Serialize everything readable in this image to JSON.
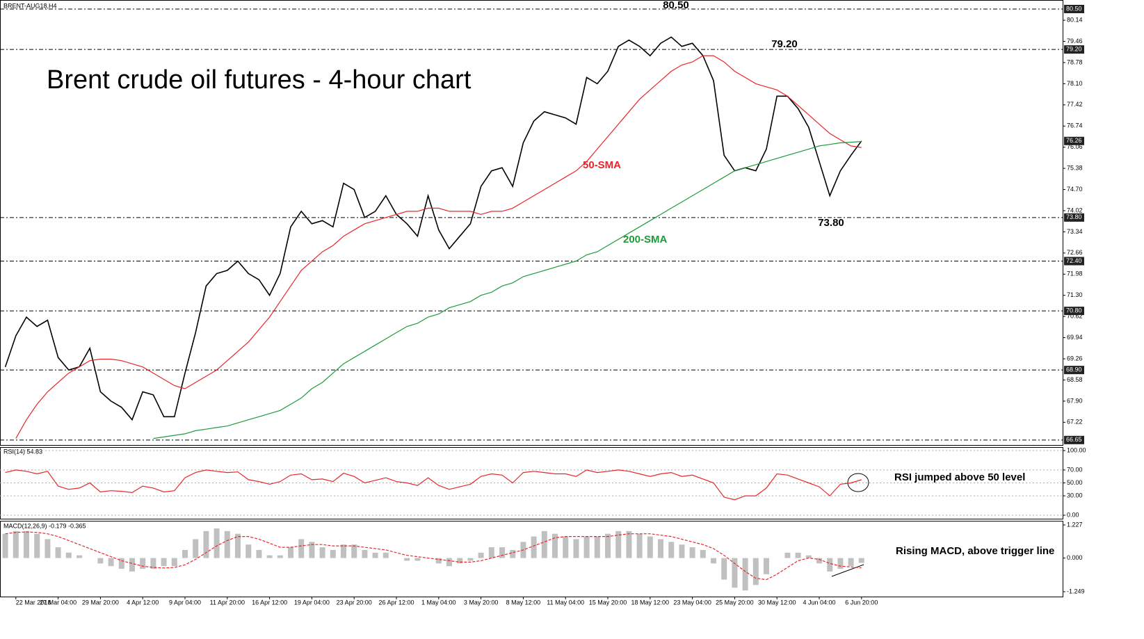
{
  "chart_data": [
    {
      "type": "line",
      "title": "Brent crude oil futures - 4-hour chart",
      "subtitle": "BRENT-AUG18,H4",
      "x": [
        -4,
        0,
        4,
        8,
        12,
        16,
        20,
        24,
        28,
        32,
        36,
        40,
        44,
        48,
        52,
        56,
        60,
        64,
        68,
        72,
        76,
        80,
        84,
        88,
        92,
        96,
        100,
        104,
        108,
        112,
        116,
        120,
        124,
        128,
        132,
        136,
        140,
        144,
        148,
        152,
        156,
        160,
        164,
        168,
        172,
        176,
        180,
        184,
        188,
        192,
        196,
        200,
        204,
        208,
        212,
        216,
        220,
        224,
        228,
        232,
        236,
        240,
        244,
        248,
        252,
        256,
        260,
        264,
        268,
        272,
        276,
        280,
        284,
        288,
        292,
        296,
        300,
        304,
        308,
        312,
        316,
        320
      ],
      "xlim": [
        -6,
        396.1
      ],
      "xticks": [
        {
          "value": 0,
          "label": "22 Mar 2018"
        },
        {
          "value": 16,
          "label": "27 Mar 04:00"
        },
        {
          "value": 32,
          "label": "29 Mar 20:00"
        },
        {
          "value": 48,
          "label": "4 Apr 12:00"
        },
        {
          "value": 64,
          "label": "9 Apr 04:00"
        },
        {
          "value": 80,
          "label": "11 Apr 20:00"
        },
        {
          "value": 96,
          "label": "16 Apr 12:00"
        },
        {
          "value": 112,
          "label": "19 Apr 04:00"
        },
        {
          "value": 128,
          "label": "23 Apr 20:00"
        },
        {
          "value": 144,
          "label": "26 Apr 12:00"
        },
        {
          "value": 160,
          "label": "1 May 04:00"
        },
        {
          "value": 176,
          "label": "3 May 20:00"
        },
        {
          "value": 192,
          "label": "8 May 12:00"
        },
        {
          "value": 208,
          "label": "11 May 04:00"
        },
        {
          "value": 224,
          "label": "15 May 20:00"
        },
        {
          "value": 240,
          "label": "18 May 12:00"
        },
        {
          "value": 256,
          "label": "23 May 04:00"
        },
        {
          "value": 272,
          "label": "25 May 20:00"
        },
        {
          "value": 288,
          "label": "30 May 12:00"
        },
        {
          "value": 304,
          "label": "4 Jun 04:00"
        },
        {
          "value": 320,
          "label": "6 Jun 20:00"
        }
      ],
      "ylim": [
        66.49,
        80.79
      ],
      "yticks": [
        {
          "value": 80.14,
          "label": "80.14"
        },
        {
          "value": 79.46,
          "label": "79.46"
        },
        {
          "value": 78.78,
          "label": "78.78"
        },
        {
          "value": 78.1,
          "label": "78.10"
        },
        {
          "value": 77.42,
          "label": "77.42"
        },
        {
          "value": 76.74,
          "label": "76.74"
        },
        {
          "value": 76.06,
          "label": "76.06"
        },
        {
          "value": 75.38,
          "label": "75.38"
        },
        {
          "value": 74.7,
          "label": "74.70"
        },
        {
          "value": 74.02,
          "label": "74.02"
        },
        {
          "value": 73.34,
          "label": "73.34"
        },
        {
          "value": 72.66,
          "label": "72.66"
        },
        {
          "value": 71.98,
          "label": "71.98"
        },
        {
          "value": 71.3,
          "label": "71.30"
        },
        {
          "value": 70.62,
          "label": "70.62"
        },
        {
          "value": 69.94,
          "label": "69.94"
        },
        {
          "value": 69.26,
          "label": "69.26"
        },
        {
          "value": 68.58,
          "label": "68.58"
        },
        {
          "value": 67.9,
          "label": "67.90"
        },
        {
          "value": 67.22,
          "label": "67.22"
        }
      ],
      "levels": [
        {
          "value": 80.5,
          "label": "80.50"
        },
        {
          "value": 79.2,
          "label": "79.20"
        },
        {
          "value": 73.8,
          "label": "73.80"
        },
        {
          "value": 72.4,
          "label": "72.40"
        },
        {
          "value": 70.8,
          "label": "70.80"
        },
        {
          "value": 68.9,
          "label": "68.90"
        },
        {
          "value": 66.65,
          "label": "66.65"
        }
      ],
      "grid": false,
      "series": [
        {
          "color": "#000000",
          "values": [
            69.0,
            70.0,
            70.6,
            70.3,
            70.5,
            69.3,
            68.9,
            69.0,
            69.6,
            68.2,
            67.9,
            67.7,
            67.3,
            68.2,
            68.1,
            67.4,
            67.4,
            68.8,
            70.1,
            71.6,
            72.0,
            72.1,
            72.4,
            72.0,
            71.8,
            71.3,
            72.0,
            73.5,
            74.0,
            73.6,
            73.7,
            73.5,
            74.9,
            74.7,
            73.8,
            74.0,
            74.5,
            73.9,
            73.6,
            73.2,
            74.5,
            73.4,
            72.8,
            73.2,
            73.6,
            74.8,
            75.3,
            75.4,
            74.8,
            76.2,
            76.9,
            77.2,
            77.1,
            77.0,
            76.8,
            78.3,
            78.1,
            78.5,
            79.3,
            79.5,
            79.3,
            79.0,
            79.4,
            79.6,
            79.3,
            79.4,
            79.0,
            78.2,
            75.8,
            75.3,
            75.4,
            75.3,
            76.0,
            77.7,
            77.7,
            77.3,
            76.7,
            75.6,
            74.5,
            75.3,
            75.8,
            76.26
          ]
        },
        {
          "name": "50-SMA",
          "color": "#e8262a",
          "values": [
            null,
            66.7,
            67.3,
            67.8,
            68.2,
            68.5,
            68.8,
            69.0,
            69.2,
            69.25,
            69.25,
            69.2,
            69.1,
            69.0,
            68.8,
            68.6,
            68.4,
            68.3,
            68.5,
            68.7,
            68.9,
            69.2,
            69.5,
            69.8,
            70.2,
            70.6,
            71.1,
            71.6,
            72.1,
            72.4,
            72.7,
            72.9,
            73.2,
            73.4,
            73.6,
            73.7,
            73.8,
            73.9,
            74.0,
            74.0,
            74.1,
            74.1,
            74.0,
            74.0,
            74.0,
            73.9,
            74.0,
            74.0,
            74.1,
            74.3,
            74.5,
            74.7,
            74.9,
            75.1,
            75.3,
            75.6,
            76.0,
            76.4,
            76.8,
            77.2,
            77.6,
            77.9,
            78.2,
            78.5,
            78.7,
            78.8,
            79.0,
            79.0,
            78.8,
            78.5,
            78.3,
            78.1,
            78.0,
            77.9,
            77.7,
            77.4,
            77.1,
            76.8,
            76.5,
            76.3,
            76.1,
            76.05
          ]
        },
        {
          "name": "200-SMA",
          "color": "#1d9b3a",
          "values": [
            null,
            null,
            null,
            null,
            null,
            null,
            null,
            null,
            null,
            null,
            null,
            null,
            null,
            null,
            66.7,
            66.75,
            66.8,
            66.85,
            66.95,
            67.0,
            67.05,
            67.1,
            67.2,
            67.3,
            67.4,
            67.5,
            67.6,
            67.8,
            68.0,
            68.3,
            68.5,
            68.8,
            69.1,
            69.3,
            69.5,
            69.7,
            69.9,
            70.1,
            70.3,
            70.4,
            70.6,
            70.7,
            70.9,
            71.0,
            71.1,
            71.3,
            71.4,
            71.6,
            71.7,
            71.9,
            72.0,
            72.1,
            72.2,
            72.3,
            72.4,
            72.6,
            72.7,
            72.9,
            73.1,
            73.3,
            73.5,
            73.7,
            73.9,
            74.1,
            74.3,
            74.5,
            74.7,
            74.9,
            75.1,
            75.3,
            75.4,
            75.5,
            75.6,
            75.7,
            75.8,
            75.9,
            76.0,
            76.1,
            76.15,
            76.2,
            76.22,
            76.24
          ]
        }
      ]
    },
    {
      "type": "line",
      "title": "RSI(14) 54.83",
      "note": "RSI jumped above 50 level",
      "ylim": [
        -5.4,
        105.4
      ],
      "grid": true,
      "yticks": [
        {
          "value": 100,
          "label": "100.00"
        },
        {
          "value": 70,
          "label": "70.00"
        },
        {
          "value": 50,
          "label": "50.00"
        },
        {
          "value": 30,
          "label": "30.00"
        },
        {
          "value": 0,
          "label": "0.00"
        }
      ],
      "series": [
        {
          "color": "#e8262a",
          "values": [
            66,
            70,
            68,
            64,
            68,
            45,
            40,
            42,
            50,
            36,
            38,
            37,
            35,
            45,
            42,
            36,
            38,
            58,
            66,
            70,
            68,
            66,
            67,
            55,
            52,
            48,
            52,
            62,
            64,
            55,
            56,
            52,
            65,
            60,
            50,
            54,
            58,
            52,
            50,
            46,
            58,
            46,
            40,
            44,
            48,
            60,
            64,
            62,
            50,
            66,
            68,
            66,
            64,
            64,
            60,
            70,
            66,
            68,
            70,
            68,
            64,
            60,
            64,
            66,
            60,
            62,
            56,
            50,
            28,
            24,
            30,
            30,
            42,
            64,
            62,
            56,
            50,
            44,
            30,
            48,
            50,
            54.83
          ]
        }
      ]
    },
    {
      "type": "macd",
      "title": "MACD(12,26,9) -0.179 -0.365",
      "note": "Rising MACD, above trigger line",
      "ylim": [
        -1.43,
        1.356
      ],
      "grid": false,
      "yticks": [
        {
          "value": 1.227,
          "label": "1.227"
        },
        {
          "value": 0,
          "label": "0.000"
        },
        {
          "value": -1.249,
          "label": "-1.249"
        }
      ],
      "series": [
        {
          "color": "#c0c0c0",
          "values": [
            0.9,
            1.0,
            1.0,
            0.9,
            0.7,
            0.4,
            0.2,
            0.1,
            0.0,
            -0.2,
            -0.3,
            -0.4,
            -0.5,
            -0.4,
            -0.4,
            -0.3,
            -0.3,
            0.3,
            0.7,
            1.0,
            1.1,
            1.0,
            0.9,
            0.5,
            0.3,
            0.1,
            0.1,
            0.4,
            0.7,
            0.6,
            0.4,
            0.3,
            0.5,
            0.5,
            0.3,
            0.2,
            0.2,
            0.0,
            -0.1,
            -0.1,
            0.0,
            -0.2,
            -0.3,
            -0.2,
            -0.1,
            0.2,
            0.4,
            0.4,
            0.3,
            0.6,
            0.8,
            1.0,
            0.9,
            0.8,
            0.7,
            0.8,
            0.8,
            0.9,
            1.0,
            1.0,
            0.9,
            0.8,
            0.7,
            0.6,
            0.5,
            0.4,
            0.3,
            -0.2,
            -0.8,
            -1.1,
            -1.2,
            -1.0,
            -0.6,
            0.0,
            0.2,
            0.2,
            0.1,
            -0.2,
            -0.5,
            -0.4,
            -0.3,
            -0.179
          ]
        },
        {
          "color": "#e8262a",
          "values": [
            0.9,
            0.95,
            0.97,
            0.95,
            0.9,
            0.8,
            0.65,
            0.5,
            0.35,
            0.2,
            0.05,
            -0.1,
            -0.2,
            -0.3,
            -0.35,
            -0.37,
            -0.35,
            -0.25,
            -0.05,
            0.2,
            0.45,
            0.65,
            0.8,
            0.8,
            0.7,
            0.55,
            0.4,
            0.4,
            0.45,
            0.5,
            0.5,
            0.45,
            0.45,
            0.45,
            0.4,
            0.35,
            0.3,
            0.2,
            0.1,
            0.05,
            0.0,
            -0.05,
            -0.1,
            -0.15,
            -0.15,
            -0.1,
            0.0,
            0.1,
            0.2,
            0.3,
            0.45,
            0.6,
            0.75,
            0.8,
            0.8,
            0.8,
            0.8,
            0.8,
            0.85,
            0.9,
            0.9,
            0.9,
            0.85,
            0.8,
            0.7,
            0.6,
            0.5,
            0.35,
            0.1,
            -0.2,
            -0.5,
            -0.75,
            -0.8,
            -0.6,
            -0.35,
            -0.1,
            0.0,
            -0.05,
            -0.2,
            -0.3,
            -0.33,
            -0.365
          ]
        }
      ]
    }
  ]
}
